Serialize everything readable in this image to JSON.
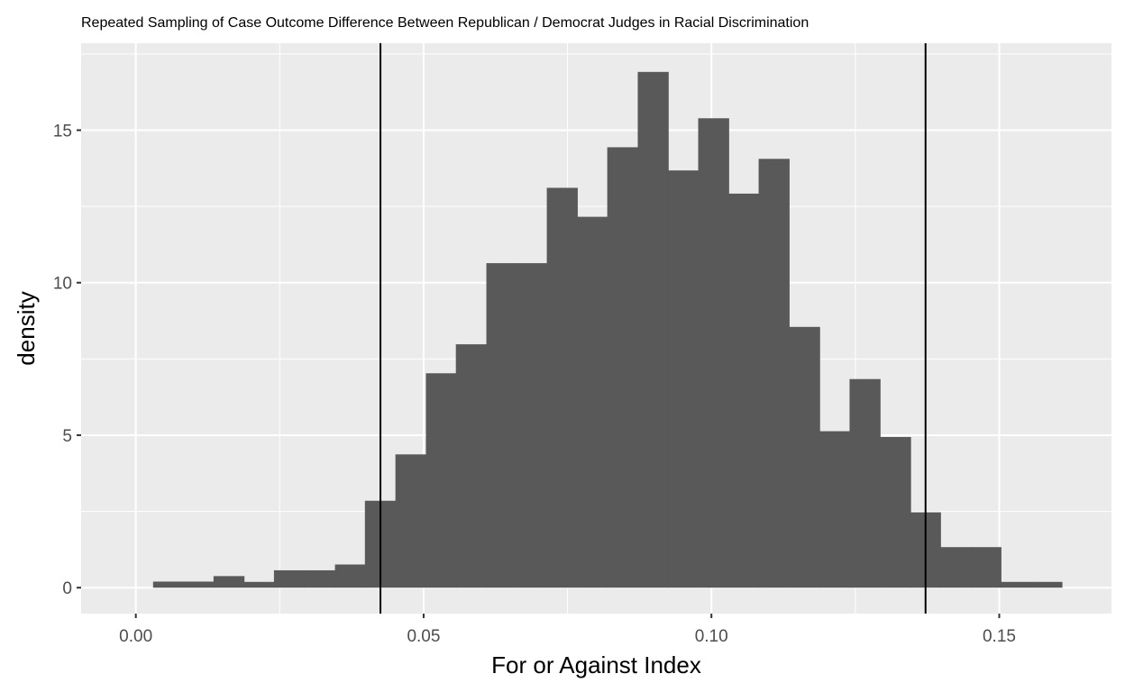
{
  "chart_data": {
    "type": "bar",
    "title": "Repeated Sampling of Case Outcome Difference Between Republican / Democrat Judges in Racial Discrimination",
    "xlabel": "For or Against Index",
    "ylabel": "density",
    "xlim": [
      -0.0095,
      0.1695
    ],
    "ylim": [
      -0.85,
      17.85
    ],
    "x_ticks": [
      0.0,
      0.05,
      0.1,
      0.15
    ],
    "x_tick_labels": [
      "0.00",
      "0.05",
      "0.10",
      "0.15"
    ],
    "y_ticks": [
      0,
      5,
      10,
      15
    ],
    "y_tick_labels": [
      "0",
      "5",
      "10",
      "15"
    ],
    "grid": true,
    "bin_width": 0.005263,
    "bins": [
      {
        "x0": 0.003,
        "x1": 0.0083,
        "density": 0.2
      },
      {
        "x0": 0.0083,
        "x1": 0.0135,
        "density": 0.2
      },
      {
        "x0": 0.0135,
        "x1": 0.0188,
        "density": 0.38
      },
      {
        "x0": 0.0188,
        "x1": 0.024,
        "density": 0.19
      },
      {
        "x0": 0.024,
        "x1": 0.0293,
        "density": 0.57
      },
      {
        "x0": 0.0293,
        "x1": 0.0346,
        "density": 0.57
      },
      {
        "x0": 0.0346,
        "x1": 0.0398,
        "density": 0.76
      },
      {
        "x0": 0.0398,
        "x1": 0.0451,
        "density": 2.85
      },
      {
        "x0": 0.0451,
        "x1": 0.0504,
        "density": 4.37
      },
      {
        "x0": 0.0504,
        "x1": 0.0556,
        "density": 7.03
      },
      {
        "x0": 0.0556,
        "x1": 0.0609,
        "density": 7.98
      },
      {
        "x0": 0.0609,
        "x1": 0.0661,
        "density": 10.64
      },
      {
        "x0": 0.0661,
        "x1": 0.0714,
        "density": 10.64
      },
      {
        "x0": 0.0714,
        "x1": 0.0767,
        "density": 13.11
      },
      {
        "x0": 0.0767,
        "x1": 0.0819,
        "density": 12.16
      },
      {
        "x0": 0.0819,
        "x1": 0.0872,
        "density": 14.44
      },
      {
        "x0": 0.0872,
        "x1": 0.0925,
        "density": 16.91
      },
      {
        "x0": 0.0925,
        "x1": 0.0977,
        "density": 13.68
      },
      {
        "x0": 0.0977,
        "x1": 0.103,
        "density": 15.39
      },
      {
        "x0": 0.103,
        "x1": 0.1082,
        "density": 12.92
      },
      {
        "x0": 0.1082,
        "x1": 0.1135,
        "density": 14.06
      },
      {
        "x0": 0.1135,
        "x1": 0.1188,
        "density": 8.55
      },
      {
        "x0": 0.1188,
        "x1": 0.124,
        "density": 5.13
      },
      {
        "x0": 0.124,
        "x1": 0.1293,
        "density": 6.84
      },
      {
        "x0": 0.1293,
        "x1": 0.1346,
        "density": 4.94
      },
      {
        "x0": 0.1346,
        "x1": 0.1398,
        "density": 2.47
      },
      {
        "x0": 0.1398,
        "x1": 0.1451,
        "density": 1.33
      },
      {
        "x0": 0.1451,
        "x1": 0.1503,
        "density": 1.33
      },
      {
        "x0": 0.1503,
        "x1": 0.1556,
        "density": 0.19
      },
      {
        "x0": 0.1556,
        "x1": 0.1609,
        "density": 0.19
      }
    ],
    "vertical_lines": [
      0.0425,
      0.1372
    ],
    "colors": {
      "bar_fill": "#595959",
      "panel_bg": "#ebebeb",
      "grid_line": "#ffffff",
      "vline": "#000000"
    }
  }
}
